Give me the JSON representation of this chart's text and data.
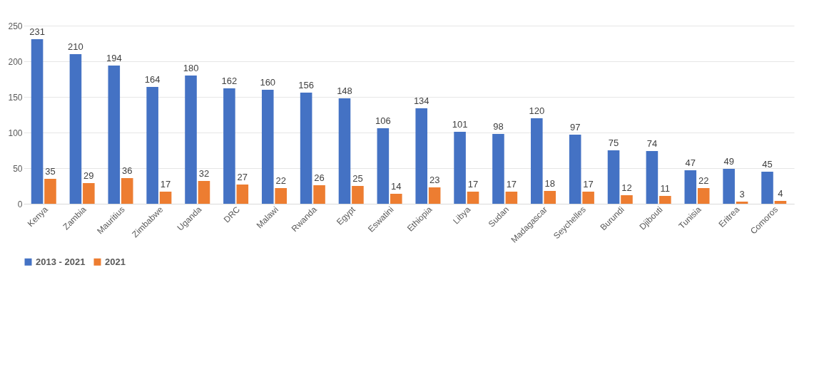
{
  "chart_data": {
    "type": "bar",
    "categories": [
      "Kenya",
      "Zambia",
      "Mauritius",
      "Zimbabwe",
      "Uganda",
      "DRC",
      "Malawi",
      "Rwanda",
      "Egypt",
      "Eswatini",
      "Ethiopia",
      "Libya",
      "Sudan",
      "Madagascar",
      "Seychelles",
      "Burundi",
      "Djibouti",
      "Tunisia",
      "Eritrea",
      "Comoros"
    ],
    "series": [
      {
        "name": "2013 - 2021",
        "color": "#4472c4",
        "values": [
          231,
          210,
          194,
          164,
          180,
          162,
          160,
          156,
          148,
          106,
          134,
          101,
          98,
          120,
          97,
          75,
          74,
          47,
          49,
          45
        ]
      },
      {
        "name": "2021",
        "color": "#ed7d31",
        "values": [
          35,
          29,
          36,
          17,
          32,
          27,
          22,
          26,
          25,
          14,
          23,
          17,
          17,
          18,
          17,
          12,
          11,
          22,
          3,
          4
        ]
      }
    ],
    "ylim": [
      0,
      250
    ],
    "yticks": [
      0,
      50,
      100,
      150,
      200,
      250
    ],
    "grid": "y",
    "legend": "bottom",
    "data_labels": true
  }
}
